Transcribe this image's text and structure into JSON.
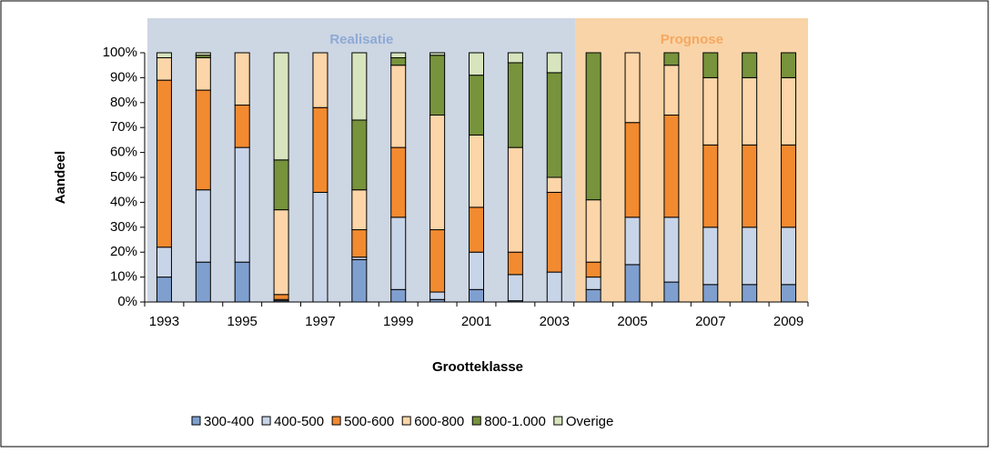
{
  "chart_data": {
    "type": "stacked_bar",
    "y_label": "Aandeel",
    "x_label": "Grootteklasse",
    "categories": [
      "1993",
      null,
      "1995",
      null,
      "1997",
      null,
      "1999",
      null,
      "2001",
      null,
      "2003",
      null,
      "2005",
      null,
      "2007",
      null,
      "2009"
    ],
    "regions": [
      {
        "label": "Realisatie",
        "color": "#cdd6e3",
        "text_color": "#8eaad5"
      },
      {
        "label": "Prognose",
        "color": "#f9d4a8",
        "text_color": "#f5a85f"
      }
    ],
    "series": [
      {
        "name": "300-400",
        "color": "#7f9fcf",
        "values": [
          10,
          16,
          16,
          0.5,
          0,
          17,
          5,
          1,
          5,
          0.5,
          0,
          5,
          15,
          8,
          7,
          7,
          7
        ]
      },
      {
        "name": "400-500",
        "color": "#c8d4e8",
        "values": [
          12,
          29,
          46,
          0.5,
          44,
          1,
          29,
          3,
          15,
          10.5,
          12,
          5,
          19,
          26,
          23,
          23,
          23
        ]
      },
      {
        "name": "500-600",
        "color": "#f28a30",
        "values": [
          67,
          40,
          17,
          2,
          34,
          11,
          28,
          25,
          18,
          9,
          32,
          6,
          38,
          41,
          33,
          33,
          33
        ]
      },
      {
        "name": "600-800",
        "color": "#fcd5a8",
        "values": [
          9,
          13,
          21,
          34,
          22,
          16,
          33,
          46,
          29,
          42,
          6,
          25,
          28,
          20,
          27,
          27,
          27
        ]
      },
      {
        "name": "800-1.000",
        "color": "#77933c",
        "values": [
          0,
          1,
          0,
          20,
          0,
          28,
          3,
          24,
          24,
          34,
          42,
          59,
          0,
          5,
          10,
          10,
          10
        ]
      },
      {
        "name": "Overige",
        "color": "#d7e4bd",
        "values": [
          2,
          1,
          0,
          43,
          0,
          27,
          2,
          1,
          9,
          4,
          8,
          0,
          0,
          0,
          0,
          0,
          0
        ]
      }
    ],
    "ylim": [
      0,
      100
    ],
    "yticks": [
      {
        "value": 0,
        "label": "0%"
      },
      {
        "value": 10,
        "label": "10%"
      },
      {
        "value": 20,
        "label": "20%"
      },
      {
        "value": 30,
        "label": "30%"
      },
      {
        "value": 40,
        "label": "40%"
      },
      {
        "value": 50,
        "label": "50%"
      },
      {
        "value": 60,
        "label": "60%"
      },
      {
        "value": 70,
        "label": "70%"
      },
      {
        "value": 80,
        "label": "80%"
      },
      {
        "value": 90,
        "label": "90%"
      },
      {
        "value": 100,
        "label": "100%"
      }
    ]
  }
}
